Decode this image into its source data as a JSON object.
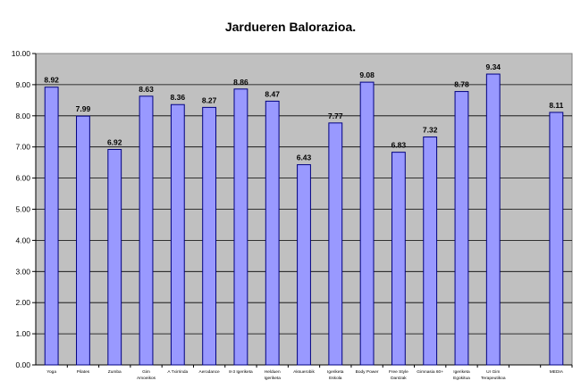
{
  "chart_data": {
    "type": "bar",
    "title": "Jardueren Balorazioa.",
    "xlabel": "",
    "ylabel": "",
    "ylim": [
      0,
      10
    ],
    "yticks": [
      "0.00",
      "1.00",
      "2.00",
      "3.00",
      "4.00",
      "5.00",
      "6.00",
      "7.00",
      "8.00",
      "9.00",
      "10.00"
    ],
    "grid": true,
    "legend": "none",
    "categories": [
      [
        "Yoga"
      ],
      [
        "Pilates"
      ],
      [
        "Zumba"
      ],
      [
        "Gim",
        "Amoeikos"
      ],
      [
        "A Txirrinda"
      ],
      [
        "Aerodance"
      ],
      [
        "8-3 Igeriketa"
      ],
      [
        "Helduen",
        "Igeriketa"
      ],
      [
        "Aksuerobik"
      ],
      [
        "Igeriketa",
        "Eskola"
      ],
      [
        "Body Power"
      ],
      [
        "Free Style",
        "Dantzak"
      ],
      [
        "Gimnasia 60+"
      ],
      [
        "Igeriketa",
        "Egokitua"
      ],
      [
        "Ur Gim",
        "Terapeutikoa"
      ],
      [
        ""
      ],
      [
        "MEDIA"
      ]
    ],
    "values": [
      8.92,
      7.99,
      6.92,
      8.63,
      8.36,
      8.27,
      8.86,
      8.47,
      6.43,
      7.77,
      9.08,
      6.83,
      7.32,
      8.78,
      9.34,
      null,
      8.11
    ],
    "value_labels": [
      "8.92",
      "7.99",
      "6.92",
      "8.63",
      "8.36",
      "8.27",
      "8.86",
      "8.47",
      "6.43",
      "7.77",
      "9.08",
      "6.83",
      "7.32",
      "8.78",
      "9.34",
      "",
      "8.11"
    ],
    "colors": {
      "plot_bg": "#c0c0c0",
      "bar_fill": "#9999ff",
      "bar_stroke": "#000080",
      "grid": "#000000"
    }
  }
}
